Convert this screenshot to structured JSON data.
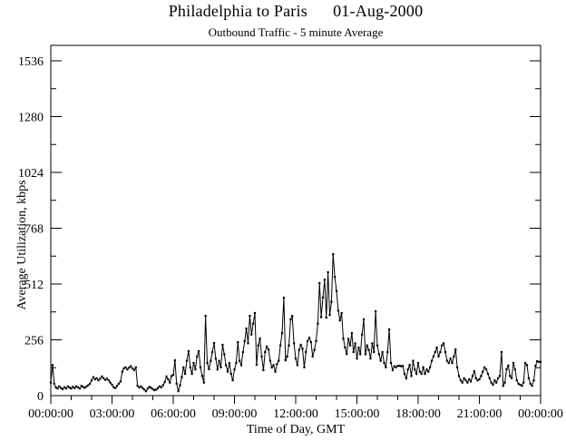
{
  "chart_data": {
    "type": "line",
    "title": "Philadelphia to Paris      01-Aug-2000",
    "subtitle": "Outbound Traffic - 5 minute Average",
    "xlabel": "Time of Day, GMT",
    "ylabel": "Average Utilization, kbps",
    "x_tick_labels": [
      "00:00:00",
      "03:00:00",
      "06:00:00",
      "09:00:00",
      "12:00:00",
      "15:00:00",
      "18:00:00",
      "21:00:00",
      "00:00:00"
    ],
    "x_tick_hours": [
      0,
      3,
      6,
      9,
      12,
      15,
      18,
      21,
      24
    ],
    "x_minor_tick_step_hours": 1,
    "y_tick_values": [
      0,
      256,
      512,
      768,
      1024,
      1280,
      1536
    ],
    "y_minor_tick_step": 128,
    "xlim_hours": [
      0,
      24
    ],
    "ylim_kbps": [
      0,
      1607
    ],
    "grid": false,
    "legend": "none",
    "line_color": "#000000",
    "background_color": "#ffffff",
    "marker": "filled-square",
    "series": [
      {
        "name": "Outbound Traffic (kbps)",
        "start": "00:00:00",
        "step_minutes": 5,
        "values": [
          60,
          140,
          55,
          38,
          33,
          42,
          35,
          30,
          38,
          33,
          42,
          37,
          33,
          40,
          35,
          42,
          38,
          33,
          45,
          40,
          36,
          42,
          48,
          55,
          70,
          85,
          75,
          80,
          70,
          78,
          88,
          80,
          72,
          78,
          70,
          60,
          50,
          38,
          35,
          45,
          55,
          65,
          110,
          125,
          130,
          120,
          128,
          135,
          125,
          118,
          130,
          45,
          38,
          42,
          35,
          28,
          20,
          33,
          40,
          36,
          30,
          25,
          28,
          35,
          42,
          38,
          48,
          62,
          88,
          75,
          60,
          90,
          95,
          162,
          55,
          20,
          48,
          85,
          130,
          100,
          160,
          204,
          130,
          100,
          150,
          120,
          180,
          204,
          130,
          90,
          60,
          366,
          150,
          121,
          160,
          200,
          241,
          170,
          120,
          160,
          130,
          233,
          190,
          140,
          110,
          150,
          100,
          70,
          120,
          150,
          245,
          160,
          140,
          200,
          250,
          308,
          240,
          366,
          280,
          330,
          379,
          142,
          230,
          262,
          180,
          117,
          200,
          225,
          212,
          160,
          129,
          140,
          110,
          145,
          160,
          230,
          287,
          449,
          162,
          180,
          230,
          350,
          366,
          240,
          170,
          140,
          210,
          233,
          215,
          130,
          200,
          250,
          266,
          245,
          180,
          210,
          250,
          330,
          516,
          360,
          450,
          532,
          358,
          566,
          370,
          430,
          649,
          545,
          480,
          390,
          345,
          379,
          262,
          221,
          191,
          260,
          230,
          287,
          200,
          240,
          170,
          220,
          190,
          280,
          350,
          190,
          230,
          210,
          170,
          240,
          200,
          387,
          230,
          190,
          160,
          200,
          150,
          130,
          200,
          304,
          150,
          117,
          135,
          130,
          137,
          137,
          135,
          137,
          100,
          79,
          120,
          141,
          90,
          160,
          120,
          100,
          150,
          110,
          100,
          130,
          100,
          120,
          110,
          130,
          160,
          180,
          200,
          220,
          180,
          200,
          230,
          240,
          200,
          160,
          150,
          170,
          150,
          180,
          212,
          130,
          90,
          70,
          60,
          80,
          70,
          60,
          75,
          65,
          90,
          112,
          80,
          70,
          75,
          90,
          110,
          130,
          121,
          100,
          80,
          60,
          50,
          70,
          60,
          80,
          90,
          200,
          45,
          60,
          121,
          138,
          90,
          80,
          150,
          120,
          70,
          55,
          50,
          45,
          60,
          150,
          140,
          80,
          55,
          45,
          70,
          137,
          158,
          155,
          155
        ]
      }
    ]
  }
}
